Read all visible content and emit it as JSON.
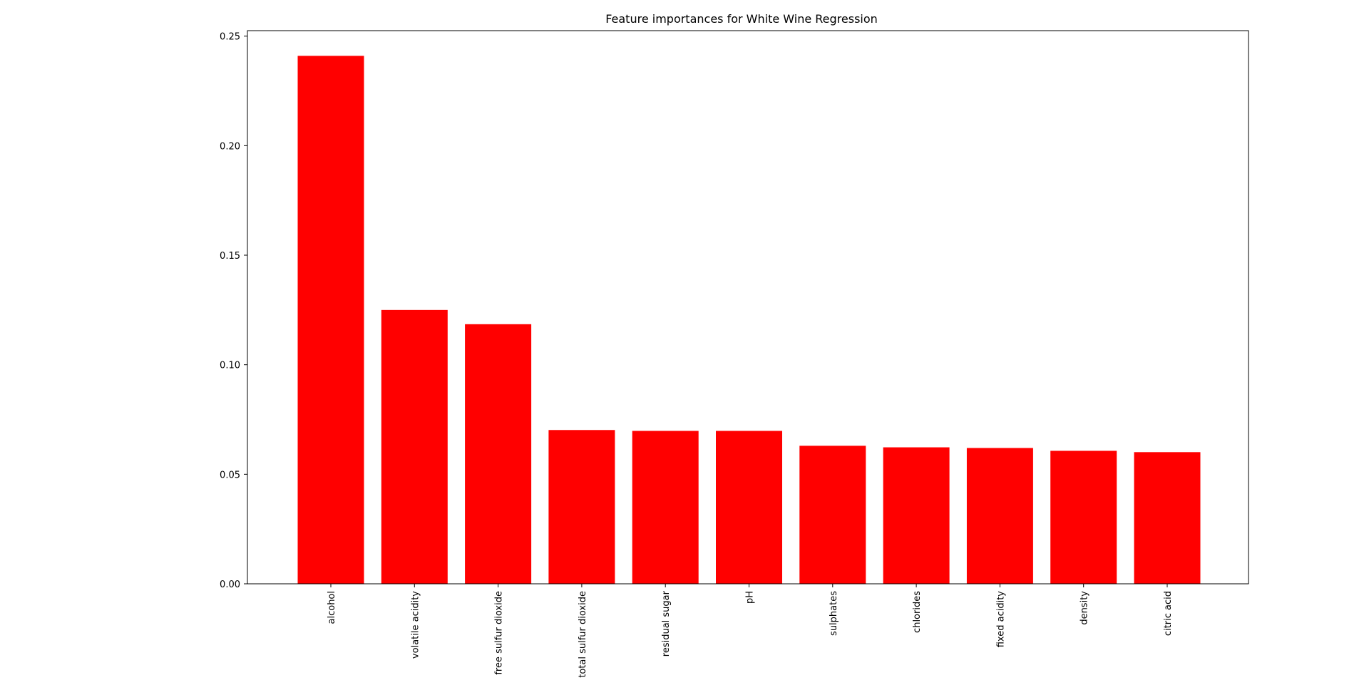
{
  "chart_data": {
    "type": "bar",
    "title": "Feature importances for White Wine Regression",
    "xlabel": "",
    "ylabel": "",
    "categories": [
      "alcohol",
      "volatile acidity",
      "free sulfur dioxide",
      "total sulfur dioxide",
      "residual sugar",
      "pH",
      "sulphates",
      "chlorides",
      "fixed acidity",
      "density",
      "citric acid"
    ],
    "values": [
      0.241,
      0.125,
      0.1185,
      0.0702,
      0.0698,
      0.0698,
      0.063,
      0.0623,
      0.062,
      0.0607,
      0.0601
    ],
    "ylim": [
      0,
      0.2525
    ],
    "yticks": [
      "0.00",
      "0.05",
      "0.10",
      "0.15",
      "0.20",
      "0.25"
    ],
    "bar_color": "#ff0000",
    "grid": false,
    "legend": "none"
  }
}
